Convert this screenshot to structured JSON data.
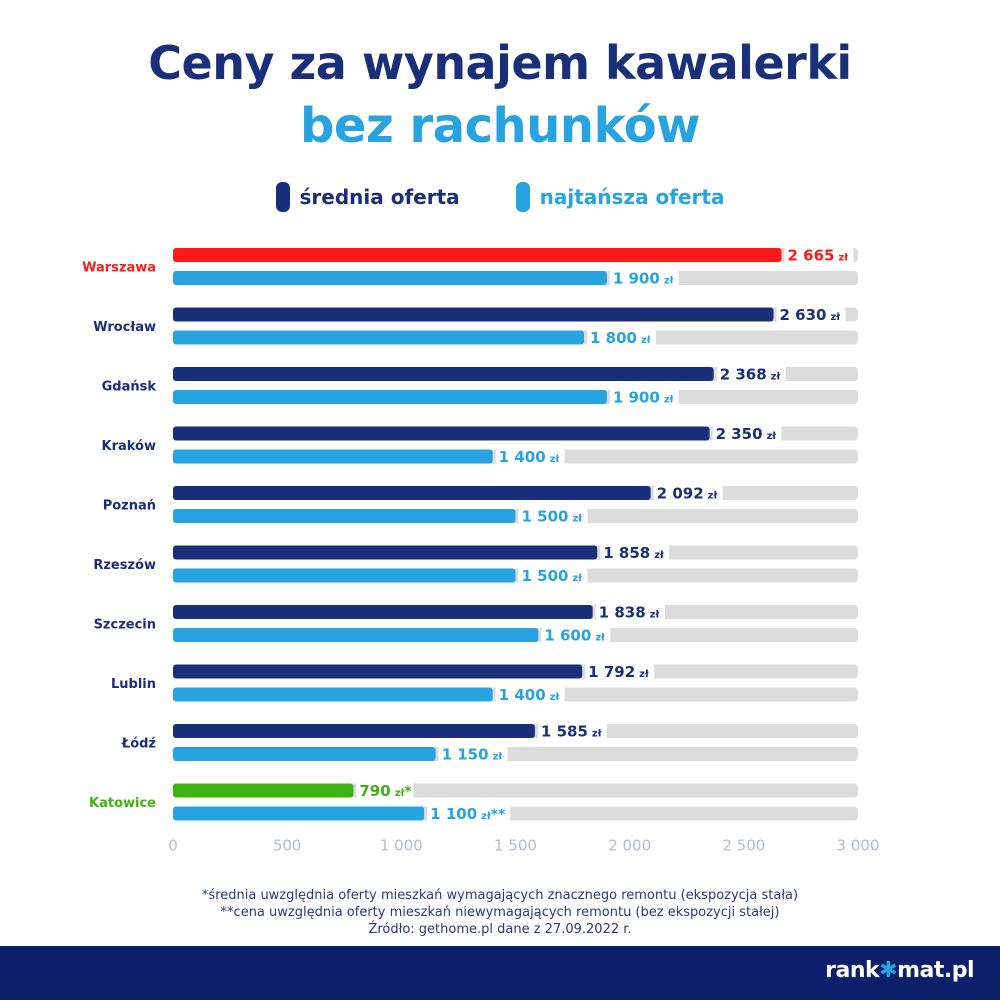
{
  "title_line1": "Ceny za wynajem kawalerki",
  "title_line2": "bez rachunków",
  "colors": {
    "avg": "#1a2f7a",
    "cheapest": "#27a3df",
    "highlight_top": "#ff1a1a",
    "highlight_bottom": "#3cb310",
    "track": "#dcdcdc",
    "axis_text": "#b6bcd0"
  },
  "footnotes": [
    "*średnia uwzględnia oferty mieszkań wymagających znacznego remontu (ekspozycja stała)",
    "**cena uwzględnia oferty mieszkań niewymagających remontu (bez ekspozycji stałej)",
    "Źródło: gethome.pl dane z 27.09.2022 r."
  ],
  "brand": {
    "before": "rank",
    "star": "✱",
    "after": "mat.pl"
  },
  "chart_data": {
    "type": "bar",
    "orientation": "horizontal",
    "title": "Ceny za wynajem kawalerki bez rachunków",
    "unit": "zł",
    "legend": {
      "position": "top"
    },
    "xlim": [
      0,
      3000
    ],
    "x_ticks": [
      0,
      500,
      1000,
      1500,
      2000,
      2500,
      3000
    ],
    "x_tick_labels": [
      "0",
      "500",
      "1 000",
      "1 500",
      "2 000",
      "2 500",
      "3 000"
    ],
    "categories": [
      "Warszawa",
      "Wrocław",
      "Gdańsk",
      "Kraków",
      "Poznań",
      "Rzeszów",
      "Szczecin",
      "Lublin",
      "Łódź",
      "Katowice"
    ],
    "series": [
      {
        "name": "średnia oferta",
        "values": [
          2665,
          2630,
          2368,
          2350,
          2092,
          1858,
          1838,
          1792,
          1585,
          790
        ],
        "labels": [
          "2 665",
          "2 630",
          "2 368",
          "2 350",
          "2 092",
          "1 858",
          "1 838",
          "1 792",
          "1 585",
          "790"
        ],
        "markers": [
          "",
          "",
          "",
          "",
          "",
          "",
          "",
          "",
          "",
          "*"
        ]
      },
      {
        "name": "najtańsza oferta",
        "values": [
          1900,
          1800,
          1900,
          1400,
          1500,
          1500,
          1600,
          1400,
          1150,
          1100
        ],
        "labels": [
          "1 900",
          "1 800",
          "1 900",
          "1 400",
          "1 500",
          "1 500",
          "1 600",
          "1 400",
          "1 150",
          "1 100"
        ],
        "markers": [
          "",
          "",
          "",
          "",
          "",
          "",
          "",
          "",
          "",
          "**"
        ]
      }
    ]
  }
}
